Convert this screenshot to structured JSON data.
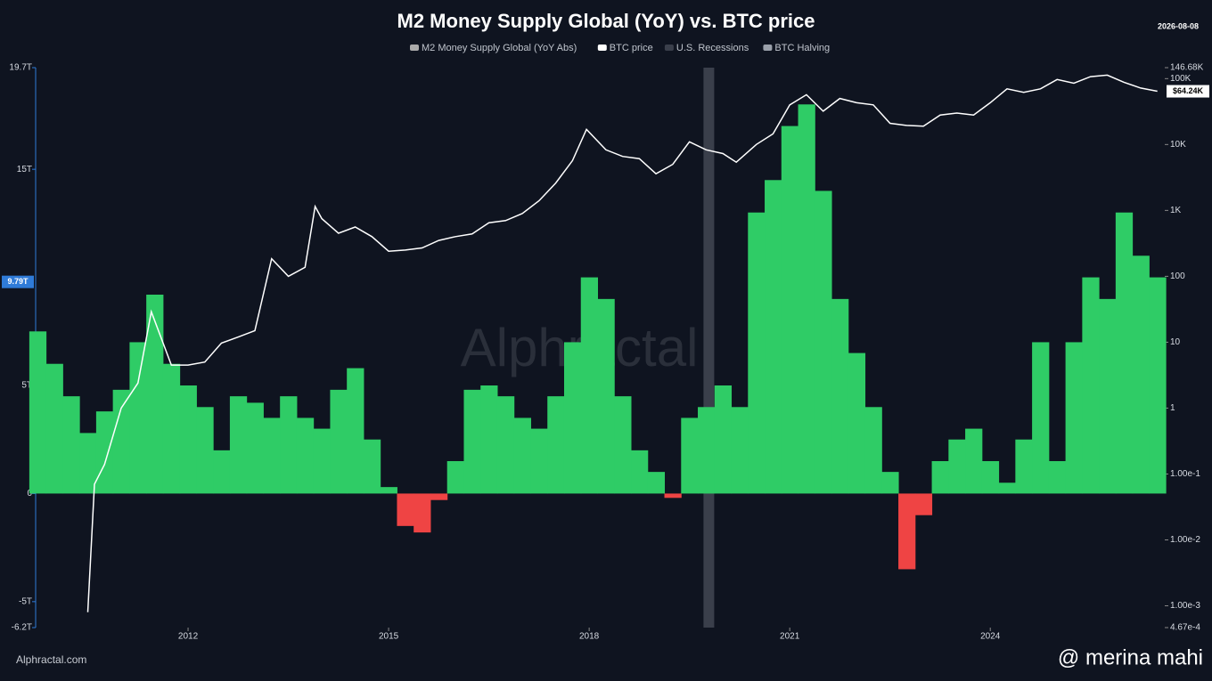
{
  "chart_data": {
    "type": "area-line",
    "title": "M2 Money Supply Global (YoY) vs. BTC price",
    "date": "2026-08-08",
    "watermark": "Alphractal",
    "source": "Alphractal.com",
    "credit": "@ merina mahi",
    "xlim": [
      2009.72,
      2026.61
    ],
    "xticks": [
      2012,
      2015,
      2018,
      2021,
      2024
    ],
    "ylim": [
      -6.2,
      19.7
    ],
    "yticks": [
      {
        "value": -6.2,
        "label": "-6.2T"
      },
      {
        "value": -5,
        "label": "-5T"
      },
      0,
      {
        "value": 5,
        "label": "5T"
      },
      {
        "value": 15,
        "label": "15T"
      },
      {
        "value": 19.7,
        "label": "19.7T"
      }
    ],
    "y2log": true,
    "y2lim": [
      0.000467,
      146680
    ],
    "y2ticks": [
      {
        "value": 0.000467,
        "label": "4.67e-4"
      },
      {
        "value": 0.001,
        "label": "1.00e-3"
      },
      {
        "value": 0.01,
        "label": "1.00e-2"
      },
      {
        "value": 0.1,
        "label": "1.00e-1"
      },
      1,
      10,
      100,
      {
        "value": 1000,
        "label": "1K"
      },
      {
        "value": 10000,
        "label": "10K"
      },
      {
        "value": 100000,
        "label": "100K"
      },
      {
        "value": 146680,
        "label": "146.68K"
      }
    ],
    "last_left": {
      "value": 9.79,
      "label": "9.79T"
    },
    "last_right": {
      "value": 64240,
      "label": "$64.24K"
    },
    "series": [
      {
        "name": "M2 Money Supply Global (YoY Abs)",
        "color": "#2fcc66",
        "negative_color": "#ef4444",
        "x": [
          2009.75,
          2010,
          2010.25,
          2010.5,
          2010.75,
          2011,
          2011.25,
          2011.5,
          2011.75,
          2012,
          2012.25,
          2012.5,
          2012.75,
          2013,
          2013.25,
          2013.5,
          2013.75,
          2014,
          2014.25,
          2014.5,
          2014.75,
          2015,
          2015.25,
          2015.5,
          2015.75,
          2016,
          2016.25,
          2016.5,
          2016.75,
          2017,
          2017.25,
          2017.5,
          2017.75,
          2018,
          2018.25,
          2018.5,
          2018.75,
          2019,
          2019.25,
          2019.5,
          2019.75,
          2020,
          2020.25,
          2020.5,
          2020.75,
          2021,
          2021.25,
          2021.5,
          2021.75,
          2022,
          2022.25,
          2022.5,
          2022.75,
          2023,
          2023.25,
          2023.5,
          2023.75,
          2024,
          2024.25,
          2024.5,
          2024.75,
          2025,
          2025.25,
          2025.5,
          2025.75,
          2026,
          2026.25,
          2026.5
        ],
        "values": [
          7.5,
          6.0,
          4.5,
          2.8,
          3.8,
          4.8,
          7.0,
          9.2,
          6.0,
          5.0,
          4.0,
          2.0,
          4.5,
          4.2,
          3.5,
          4.5,
          3.5,
          3.0,
          4.8,
          5.8,
          2.5,
          0.3,
          -1.5,
          -1.8,
          -0.3,
          1.5,
          4.8,
          5.0,
          4.5,
          3.5,
          3.0,
          4.5,
          7.0,
          10.0,
          9.0,
          4.5,
          2.0,
          1.0,
          -0.2,
          3.5,
          4.0,
          5.0,
          4.0,
          13.0,
          14.5,
          17.0,
          18.0,
          14.0,
          9.0,
          6.5,
          4.0,
          1.0,
          -3.5,
          -1.0,
          1.5,
          2.5,
          3.0,
          1.5,
          0.5,
          2.5,
          7.0,
          1.5,
          7.0,
          10.0,
          9.0,
          13.0,
          11.0,
          10.0
        ]
      },
      {
        "name": "BTC price",
        "color": "#ffffff",
        "axis": "y2",
        "x": [
          2010.5,
          2010.6,
          2010.75,
          2011,
          2011.25,
          2011.45,
          2011.75,
          2012,
          2012.25,
          2012.5,
          2012.75,
          2013,
          2013.25,
          2013.5,
          2013.75,
          2013.9,
          2014,
          2014.25,
          2014.5,
          2014.75,
          2015,
          2015.25,
          2015.5,
          2015.75,
          2016,
          2016.25,
          2016.5,
          2016.75,
          2017,
          2017.25,
          2017.5,
          2017.75,
          2017.96,
          2018.25,
          2018.5,
          2018.75,
          2019,
          2019.25,
          2019.5,
          2019.75,
          2020,
          2020.2,
          2020.5,
          2020.75,
          2021,
          2021.25,
          2021.5,
          2021.75,
          2022,
          2022.25,
          2022.5,
          2022.75,
          2023,
          2023.25,
          2023.5,
          2023.75,
          2024,
          2024.25,
          2024.5,
          2024.75,
          2025,
          2025.25,
          2025.5,
          2025.75,
          2026,
          2026.25,
          2026.5
        ],
        "values": [
          0.0008,
          0.07,
          0.14,
          1,
          2.4,
          29,
          4.5,
          4.5,
          5,
          9.7,
          12,
          15,
          185,
          100,
          137,
          1150,
          750,
          450,
          560,
          400,
          240,
          250,
          270,
          350,
          400,
          440,
          650,
          700,
          900,
          1400,
          2600,
          5700,
          17000,
          8300,
          6600,
          6100,
          3600,
          5000,
          11000,
          8300,
          7300,
          5400,
          10000,
          14500,
          40000,
          57000,
          32000,
          50000,
          43000,
          40000,
          21000,
          19500,
          19000,
          28000,
          30000,
          28000,
          43000,
          70000,
          62000,
          70000,
          97000,
          85000,
          107000,
          113000,
          88000,
          72000,
          64240
        ]
      },
      {
        "name": "U.S. Recessions",
        "color": "#3a3f4b",
        "x": [
          2019.71,
          2019.87
        ]
      },
      {
        "name": "BTC Halving",
        "color": "#9aa0aa"
      }
    ]
  }
}
